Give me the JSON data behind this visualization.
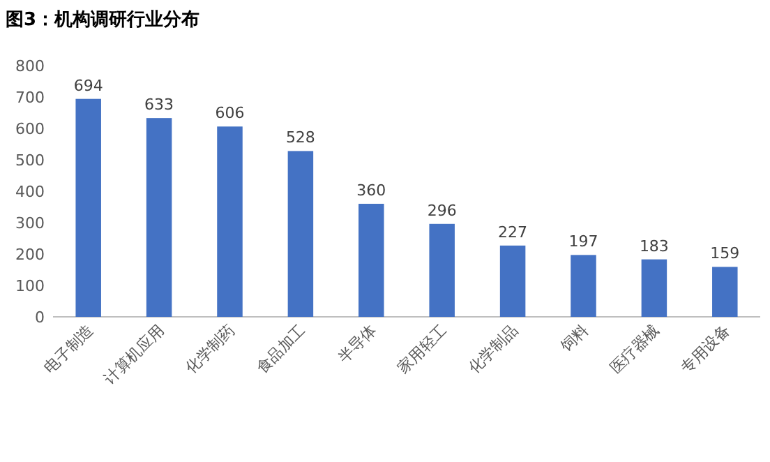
{
  "chart_data": {
    "type": "bar",
    "title": "图3：机构调研行业分布",
    "categories": [
      "电子制造",
      "计算机应用",
      "化学制药",
      "食品加工",
      "半导体",
      "家用轻工",
      "化学制品",
      "饲料",
      "医疗器械",
      "专用设备"
    ],
    "values": [
      694,
      633,
      606,
      528,
      360,
      296,
      227,
      197,
      183,
      159
    ],
    "color": "#4472c4",
    "ylim": [
      0,
      800
    ],
    "yticks": [
      0,
      100,
      200,
      300,
      400,
      500,
      600,
      700,
      800
    ],
    "grid": false,
    "data_labels": true
  }
}
